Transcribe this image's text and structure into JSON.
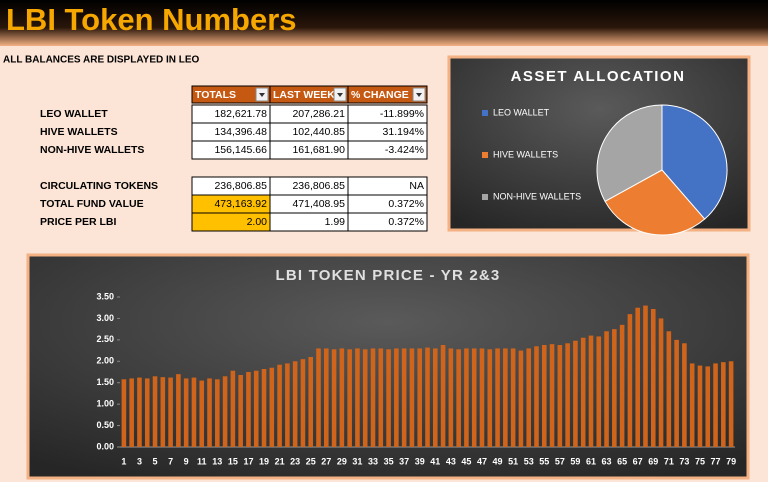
{
  "header": {
    "title": "LBI Token Numbers"
  },
  "note": "ALL BALANCES ARE DISPLAYED IN LEO",
  "table": {
    "columns": [
      "TOTALS",
      "LAST WEEK",
      "% CHANGE"
    ],
    "groups": [
      [
        [
          "LEO WALLET",
          "182,621.78",
          "207,286.21",
          "-11.899%"
        ],
        [
          "HIVE WALLETS",
          "134,396.48",
          "102,440.85",
          "31.194%"
        ],
        [
          "NON-HIVE WALLETS",
          "156,145.66",
          "161,681.90",
          "-3.424%"
        ]
      ],
      [
        [
          "CIRCULATING TOKENS",
          "236,806.85",
          "236,806.85",
          "NA"
        ],
        [
          "TOTAL FUND VALUE",
          "473,163.92",
          "471,408.95",
          "0.372%"
        ],
        [
          "PRICE PER LBI",
          "2.00",
          "1.99",
          "0.372%"
        ]
      ]
    ]
  },
  "chart_data": [
    {
      "type": "pie",
      "title": "ASSET ALLOCATION",
      "categories": [
        "LEO WALLET",
        "HIVE WALLETS",
        "NON-HIVE WALLETS"
      ],
      "values": [
        38.6,
        28.4,
        33.0
      ],
      "colors": [
        "#4472c4",
        "#ed7d31",
        "#a5a5a5"
      ]
    },
    {
      "type": "bar",
      "title": "LBI TOKEN  PRICE - YR 2&3",
      "color": "#d0641a",
      "categories": [
        "1",
        null,
        "3",
        null,
        "5",
        null,
        "7",
        null,
        "9",
        null,
        "11",
        null,
        "13",
        null,
        "15",
        null,
        "17",
        null,
        "19",
        null,
        "21",
        null,
        "23",
        null,
        "25",
        null,
        "27",
        null,
        "29",
        null,
        "31",
        null,
        "33",
        null,
        "35",
        null,
        "37",
        null,
        "39",
        null,
        "41",
        null,
        "43",
        null,
        "45",
        null,
        "47",
        null,
        "49",
        null,
        "51",
        null,
        "53",
        null,
        "55",
        null,
        "57",
        null,
        "59",
        null,
        "61",
        null,
        "63",
        null,
        "65",
        null,
        "67",
        null,
        "69",
        null,
        "71",
        null,
        "73",
        null,
        "75",
        null,
        "77",
        null,
        "79"
      ],
      "values": [
        1.58,
        1.6,
        1.62,
        1.6,
        1.65,
        1.63,
        1.62,
        1.7,
        1.6,
        1.62,
        1.55,
        1.6,
        1.58,
        1.65,
        1.78,
        1.68,
        1.75,
        1.78,
        1.82,
        1.85,
        1.92,
        1.95,
        2.0,
        2.05,
        2.1,
        2.3,
        2.3,
        2.28,
        2.3,
        2.28,
        2.3,
        2.28,
        2.3,
        2.3,
        2.28,
        2.3,
        2.3,
        2.3,
        2.3,
        2.32,
        2.3,
        2.38,
        2.3,
        2.28,
        2.3,
        2.3,
        2.3,
        2.28,
        2.3,
        2.3,
        2.3,
        2.25,
        2.3,
        2.35,
        2.38,
        2.4,
        2.38,
        2.42,
        2.48,
        2.55,
        2.6,
        2.58,
        2.7,
        2.75,
        2.85,
        3.1,
        3.25,
        3.3,
        3.22,
        3.0,
        2.7,
        2.5,
        2.42,
        1.95,
        1.9,
        1.88,
        1.95,
        1.98,
        2.0
      ],
      "ylim": [
        0,
        3.5
      ],
      "yticks": [
        {
          "value": 0,
          "label": "0.00"
        },
        {
          "value": 0.5,
          "label": "0.50"
        },
        {
          "value": 1,
          "label": "1.00"
        },
        {
          "value": 1.5,
          "label": "1.50"
        },
        {
          "value": 2,
          "label": "2.00"
        },
        {
          "value": 2.5,
          "label": "2.50"
        },
        {
          "value": 3,
          "label": "3.00"
        },
        {
          "value": 3.5,
          "label": "3.50"
        }
      ]
    }
  ]
}
